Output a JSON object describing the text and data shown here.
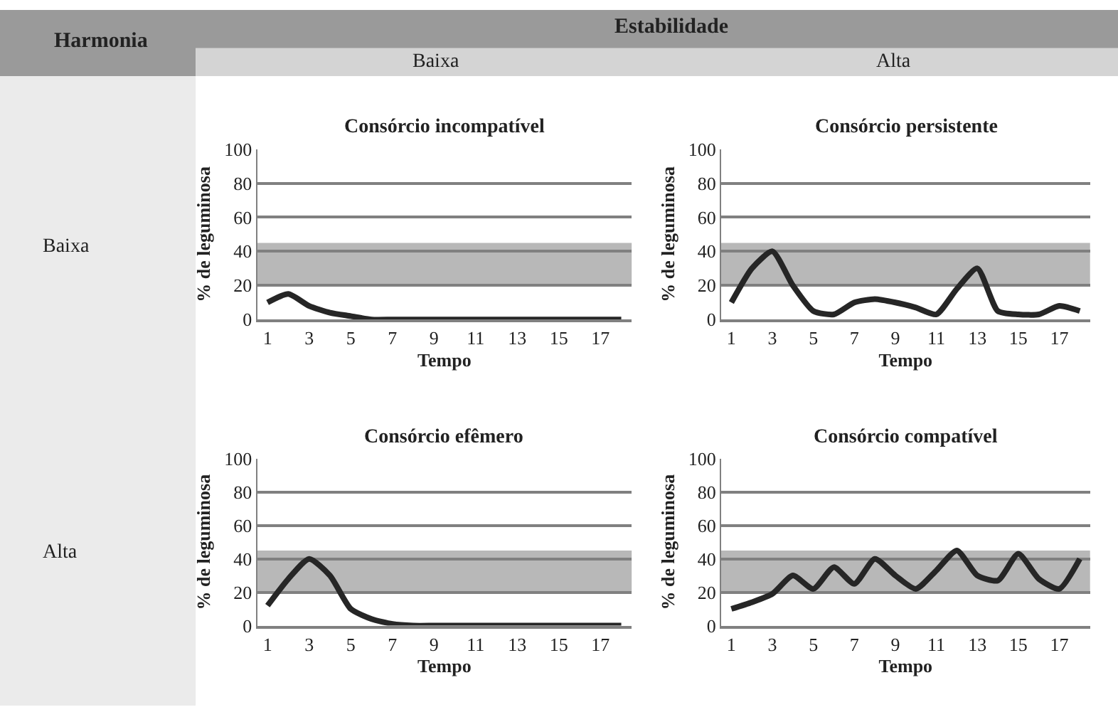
{
  "chart_data": [
    {
      "type": "line",
      "title": "Consórcio incompatível",
      "xlabel": "Tempo",
      "ylabel": "% de leguminosa",
      "annotations": [
        "Harmonia",
        "Estabilidade",
        "Baixa",
        "Baixa"
      ],
      "x": [
        1,
        2,
        3,
        4,
        5,
        6,
        7,
        8,
        9,
        10,
        11,
        12,
        13,
        14,
        15,
        16,
        17,
        18
      ],
      "series": [
        {
          "color": "#262626",
          "values": [
            10,
            15,
            8,
            4,
            2,
            0,
            0,
            0,
            0,
            0,
            0,
            0,
            0,
            0,
            0,
            0,
            0,
            0
          ]
        }
      ],
      "xlim": [
        0.5,
        18.5
      ],
      "xticks": [
        1,
        3,
        5,
        7,
        9,
        11,
        13,
        15,
        17
      ],
      "ylim": [
        0,
        100
      ],
      "yticks": [
        0,
        20,
        40,
        60,
        80,
        100
      ],
      "grid": "y",
      "bands": [
        {
          "axis": "y",
          "from": 20,
          "to": 45,
          "color": "#a6a6a6"
        }
      ]
    },
    {
      "type": "line",
      "title": "Consórcio persistente",
      "xlabel": "Tempo",
      "ylabel": "% de leguminosa",
      "annotations": [
        "Alta"
      ],
      "x": [
        1,
        2,
        3,
        4,
        5,
        6,
        7,
        8,
        9,
        10,
        11,
        12,
        13,
        14,
        15,
        16,
        17,
        18
      ],
      "series": [
        {
          "color": "#262626",
          "values": [
            10,
            30,
            40,
            20,
            5,
            3,
            10,
            12,
            10,
            7,
            3,
            18,
            30,
            5,
            3,
            3,
            8,
            5
          ]
        }
      ],
      "xlim": [
        0.5,
        18.5
      ],
      "xticks": [
        1,
        3,
        5,
        7,
        9,
        11,
        13,
        15,
        17
      ],
      "ylim": [
        0,
        100
      ],
      "yticks": [
        0,
        20,
        40,
        60,
        80,
        100
      ],
      "grid": "y",
      "bands": [
        {
          "axis": "y",
          "from": 20,
          "to": 45,
          "color": "#a6a6a6"
        }
      ]
    },
    {
      "type": "line",
      "title": "Consórcio efêmero",
      "xlabel": "Tempo",
      "ylabel": "% de leguminosa",
      "annotations": [
        "Alta"
      ],
      "x": [
        1,
        2,
        3,
        4,
        5,
        6,
        7,
        8,
        9,
        10,
        11,
        12,
        13,
        14,
        15,
        16,
        17,
        18
      ],
      "series": [
        {
          "color": "#262626",
          "values": [
            12,
            28,
            40,
            30,
            10,
            4,
            1,
            0,
            0,
            0,
            0,
            0,
            0,
            0,
            0,
            0,
            0,
            0
          ]
        }
      ],
      "xlim": [
        0.5,
        18.5
      ],
      "xticks": [
        1,
        3,
        5,
        7,
        9,
        11,
        13,
        15,
        17
      ],
      "ylim": [
        0,
        100
      ],
      "yticks": [
        0,
        20,
        40,
        60,
        80,
        100
      ],
      "grid": "y",
      "bands": [
        {
          "axis": "y",
          "from": 20,
          "to": 45,
          "color": "#a6a6a6"
        }
      ]
    },
    {
      "type": "line",
      "title": "Consórcio compatível",
      "xlabel": "Tempo",
      "ylabel": "% de leguminosa",
      "x": [
        1,
        2,
        3,
        4,
        5,
        6,
        7,
        8,
        9,
        10,
        11,
        12,
        13,
        14,
        15,
        16,
        17,
        18
      ],
      "series": [
        {
          "color": "#262626",
          "values": [
            10,
            14,
            19,
            30,
            22,
            35,
            25,
            40,
            30,
            22,
            33,
            45,
            30,
            27,
            43,
            28,
            22,
            40
          ]
        }
      ],
      "xlim": [
        0.5,
        18.5
      ],
      "xticks": [
        1,
        3,
        5,
        7,
        9,
        11,
        13,
        15,
        17
      ],
      "ylim": [
        0,
        100
      ],
      "yticks": [
        0,
        20,
        40,
        60,
        80,
        100
      ],
      "grid": "y",
      "bands": [
        {
          "axis": "y",
          "from": 20,
          "to": 45,
          "color": "#a6a6a6"
        }
      ]
    }
  ]
}
